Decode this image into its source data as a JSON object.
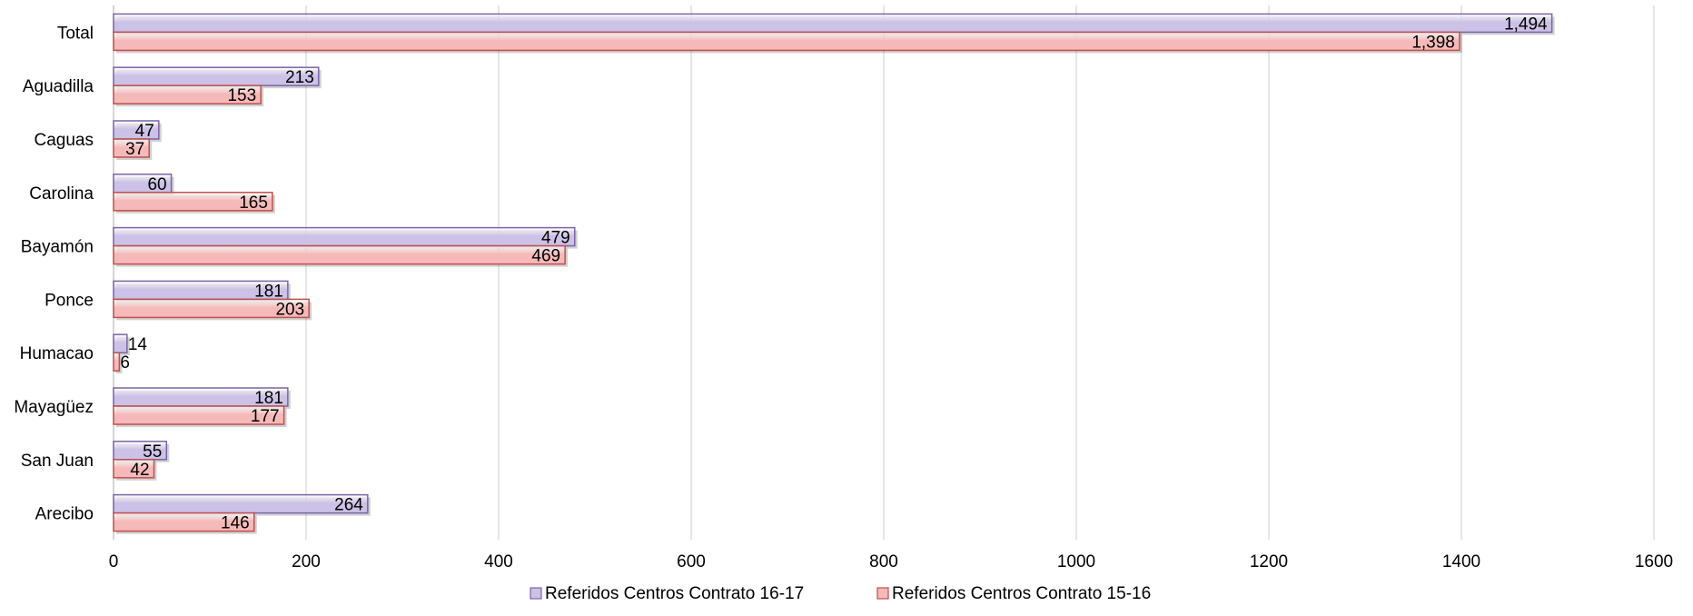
{
  "chart_data": {
    "type": "bar",
    "orientation": "horizontal",
    "categories": [
      "Total",
      "Aguadilla",
      "Caguas",
      "Carolina",
      "Bayamón",
      "Ponce",
      "Humacao",
      "Mayagüez",
      "San Juan",
      "Arecibo"
    ],
    "series": [
      {
        "name": "Referidos Centros Contrato 16-17",
        "values": [
          1494,
          213,
          47,
          60,
          479,
          181,
          14,
          181,
          55,
          264
        ],
        "labels": [
          "1,494",
          "213",
          "47",
          "60",
          "479",
          "181",
          "14",
          "181",
          "55",
          "264"
        ],
        "color": "#ccc1e6",
        "border": "#7b64a6"
      },
      {
        "name": "Referidos Centros Contrato 15-16",
        "values": [
          1398,
          153,
          37,
          165,
          469,
          203,
          6,
          177,
          42,
          146
        ],
        "labels": [
          "1,398",
          "153",
          "37",
          "165",
          "469",
          "203",
          "6",
          "177",
          "42",
          "146"
        ],
        "color": "#f6b9b9",
        "border": "#c0504d"
      }
    ],
    "xlim": [
      0,
      1600
    ],
    "xticks": [
      "0",
      "200",
      "400",
      "600",
      "800",
      "1000",
      "1200",
      "1400",
      "1600"
    ],
    "grid": true,
    "legend": "bottom"
  }
}
